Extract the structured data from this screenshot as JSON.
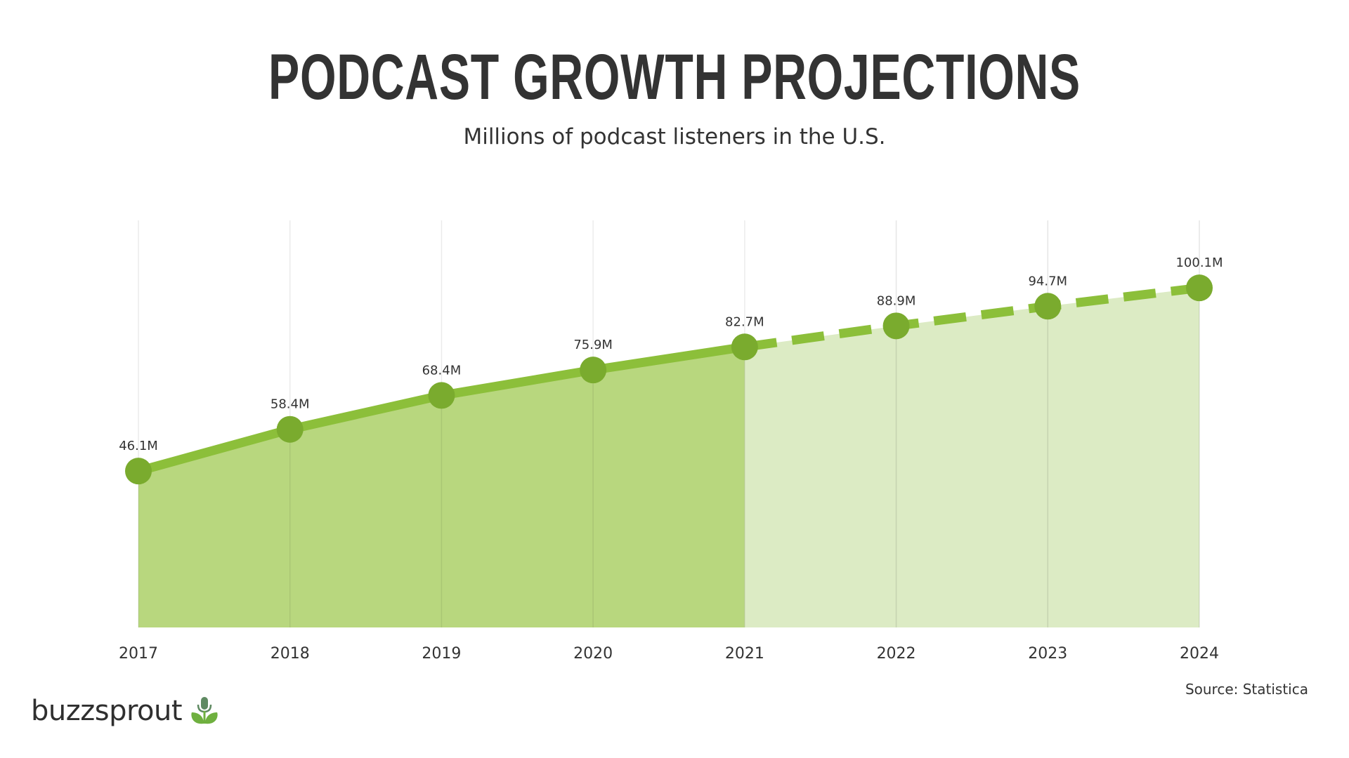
{
  "chart_data": {
    "type": "area",
    "title": "PODCAST GROWTH PROJECTIONS",
    "subtitle": "Millions of podcast listeners in the U.S.",
    "categories": [
      "2017",
      "2018",
      "2019",
      "2020",
      "2021",
      "2022",
      "2023",
      "2024"
    ],
    "values": [
      46.1,
      58.4,
      68.4,
      75.9,
      82.7,
      88.9,
      94.7,
      100.1
    ],
    "data_labels": [
      "46.1M",
      "58.4M",
      "68.4M",
      "75.9M",
      "82.7M",
      "88.9M",
      "94.7M",
      "100.1M"
    ],
    "actual_through": "2021",
    "projected_from": "2021",
    "ylim": [
      0,
      120
    ],
    "xlabel": "",
    "ylabel": "",
    "grid": "vertical",
    "colors": {
      "line": "#8cbf3a",
      "marker": "#7aab2e",
      "fill_actual": "#b8d77e",
      "fill_projected": "#dcebc4",
      "grid": "#e2e2e2"
    }
  },
  "source": "Source: Statistica",
  "logo": {
    "text": "buzzsprout",
    "icon": "microphone-sprout-icon"
  }
}
